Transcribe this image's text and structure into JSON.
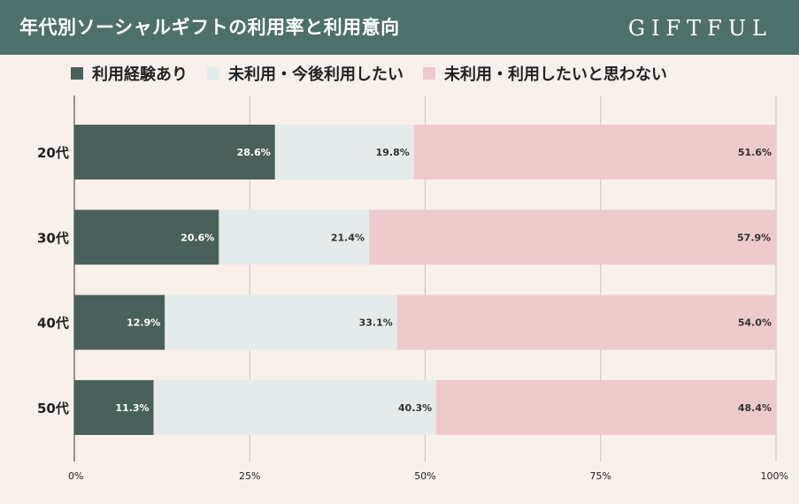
{
  "header": {
    "title": "年代別ソーシャルギフトの利用率と利用意向",
    "logo": "GIFTFUL"
  },
  "colors": {
    "header_bg": "#4e706a",
    "background": "#f8f0eb",
    "series": [
      "#4a605a",
      "#e4ebea",
      "#eecacd"
    ],
    "value_label_on_dark": "#ffffff",
    "value_label_on_light": "#333333",
    "grid": "#c9c3c0"
  },
  "chart_data": {
    "type": "bar",
    "orientation": "horizontal",
    "stacked": true,
    "categories": [
      "20代",
      "30代",
      "40代",
      "50代"
    ],
    "series": [
      {
        "name": "利用経験あり",
        "values": [
          28.6,
          20.6,
          12.9,
          11.3
        ]
      },
      {
        "name": "未利用・今後利用したい",
        "values": [
          19.8,
          21.4,
          33.1,
          40.3
        ]
      },
      {
        "name": "未利用・利用したいと思わない",
        "values": [
          51.6,
          57.9,
          54.0,
          48.4
        ]
      }
    ],
    "value_labels": [
      [
        "28.6%",
        "20.6%",
        "12.9%",
        "11.3%"
      ],
      [
        "19.8%",
        "21.4%",
        "33.1%",
        "40.3%"
      ],
      [
        "51.6%",
        "57.9%",
        "54.0%",
        "48.4%"
      ]
    ],
    "xlim": [
      0,
      100
    ],
    "xticks": [
      0,
      25,
      50,
      75,
      100
    ],
    "xtick_labels": [
      "0%",
      "25%",
      "50%",
      "75%",
      "100%"
    ],
    "grid": true,
    "legend_position": "top-left"
  }
}
